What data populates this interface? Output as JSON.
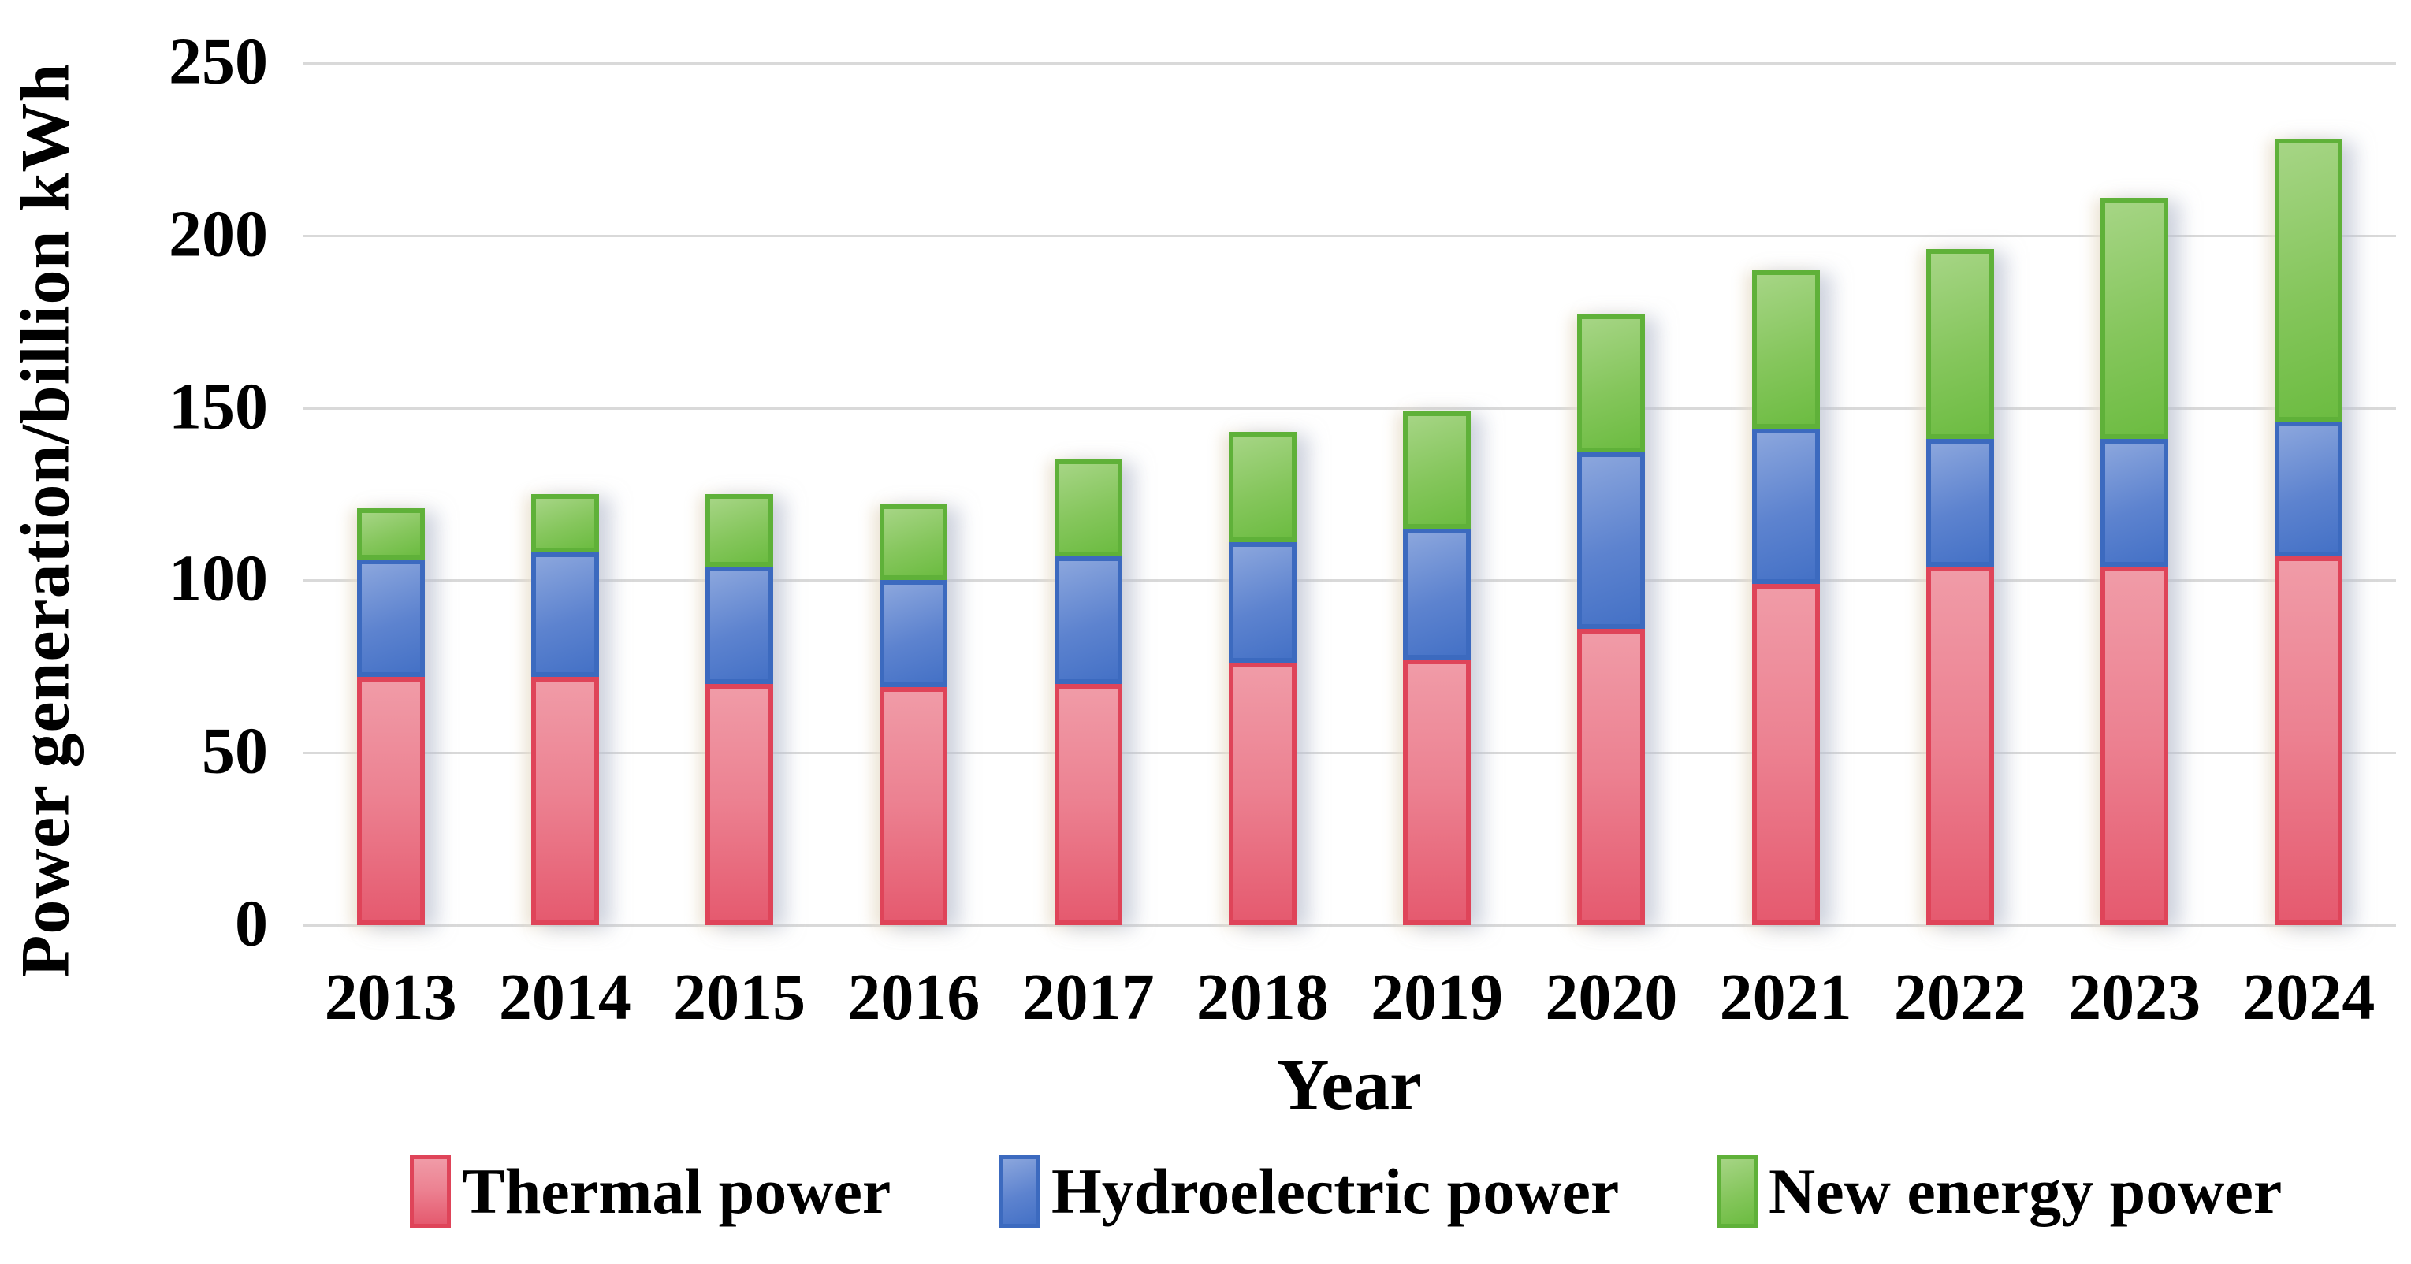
{
  "page": {
    "background": "#ffffff",
    "grid_color": "#d9d9d9"
  },
  "chart_data": {
    "type": "bar",
    "stacked": true,
    "title": "",
    "xlabel": "Year",
    "ylabel": "Power generation/billion kWh",
    "categories": [
      "2013",
      "2014",
      "2015",
      "2016",
      "2017",
      "2018",
      "2019",
      "2020",
      "2021",
      "2022",
      "2023",
      "2024"
    ],
    "series": [
      {
        "name": "Thermal power",
        "fill_color": "#e8596e",
        "border_color": "#df4459",
        "values": [
          72,
          72,
          70,
          69,
          70,
          76,
          77,
          86,
          99,
          104,
          104,
          107
        ]
      },
      {
        "name": "Hydroelectric power",
        "fill_color": "#4b76c9",
        "border_color": "#3c6abf",
        "values": [
          34,
          36,
          34,
          31,
          37,
          35,
          38,
          51,
          45,
          37,
          37,
          39
        ]
      },
      {
        "name": "New energy power",
        "fill_color": "#74bf4a",
        "border_color": "#5fb139",
        "values": [
          15,
          17,
          21,
          22,
          28,
          32,
          34,
          40,
          46,
          55,
          70,
          82
        ]
      }
    ],
    "totals": [
      121,
      125,
      125,
      122,
      135,
      143,
      149,
      177,
      190,
      196,
      211,
      228
    ],
    "ylim": [
      0,
      250
    ],
    "yticks": [
      0,
      50,
      100,
      150,
      200,
      250
    ],
    "ytick_labels": [
      "0",
      "50",
      "100",
      "150",
      "200",
      "250"
    ],
    "grid": "horizontal",
    "legend_position": "bottom",
    "legend_entries": [
      "Thermal power",
      "Hydroelectric power",
      "New energy power"
    ]
  }
}
